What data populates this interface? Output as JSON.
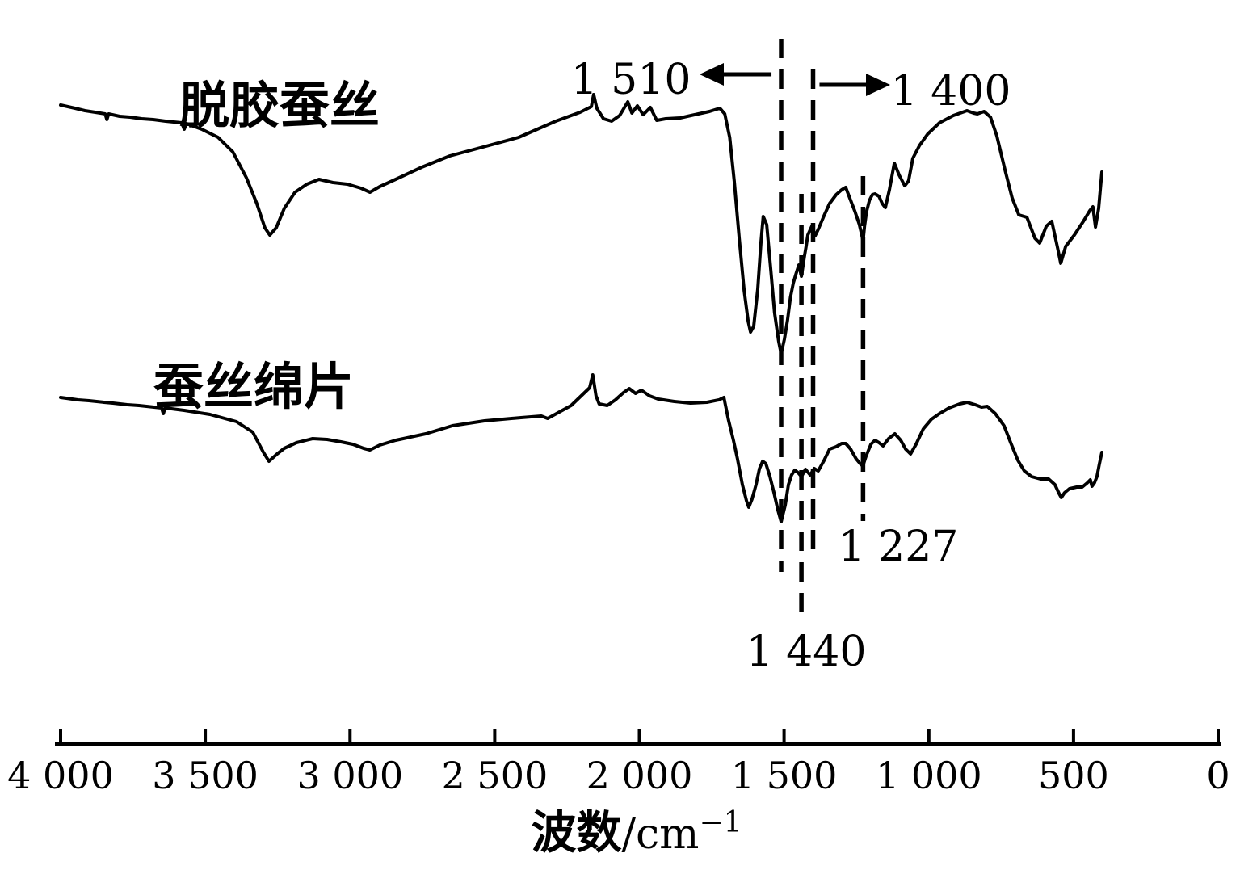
{
  "chart_data": {
    "type": "line",
    "title": "",
    "x_axis": {
      "label_cn": "波数",
      "label_unit": "/cm",
      "label_sup": "−1",
      "min": 0,
      "max": 4000,
      "reversed": true,
      "tick_values": [
        4000,
        3500,
        3000,
        2500,
        2000,
        1500,
        1000,
        500,
        0
      ],
      "tick_labels": [
        "4 000",
        "3 500",
        "3 000",
        "2 500",
        "2 000",
        "1 500",
        "1 000",
        "500",
        "0"
      ]
    },
    "y_axis": {
      "label": "",
      "note": "Transmittance, arbitrary units — no y-axis drawn; point y values are pixel offsets from image top"
    },
    "series": [
      {
        "name": "脱胶蚕丝",
        "points": [
          [
            4000,
            130
          ],
          [
            3950,
            134
          ],
          [
            3916,
            137
          ],
          [
            3880,
            139
          ],
          [
            3846,
            141
          ],
          [
            3840,
            148
          ],
          [
            3834,
            141
          ],
          [
            3796,
            144
          ],
          [
            3760,
            145
          ],
          [
            3720,
            147
          ],
          [
            3680,
            148
          ],
          [
            3637,
            150
          ],
          [
            3581,
            152
          ],
          [
            3573,
            160
          ],
          [
            3565,
            153
          ],
          [
            3512,
            160
          ],
          [
            3456,
            170
          ],
          [
            3405,
            188
          ],
          [
            3358,
            220
          ],
          [
            3322,
            252
          ],
          [
            3294,
            282
          ],
          [
            3277,
            291
          ],
          [
            3255,
            282
          ],
          [
            3227,
            258
          ],
          [
            3190,
            238
          ],
          [
            3149,
            228
          ],
          [
            3107,
            222
          ],
          [
            3059,
            226
          ],
          [
            3009,
            228
          ],
          [
            2962,
            233
          ],
          [
            2931,
            238
          ],
          [
            2897,
            231
          ],
          [
            2836,
            221
          ],
          [
            2752,
            207
          ],
          [
            2655,
            193
          ],
          [
            2540,
            182
          ],
          [
            2417,
            170
          ],
          [
            2289,
            150
          ],
          [
            2205,
            139
          ],
          [
            2166,
            132
          ],
          [
            2158,
            117
          ],
          [
            2147,
            134
          ],
          [
            2124,
            147
          ],
          [
            2096,
            150
          ],
          [
            2068,
            143
          ],
          [
            2040,
            126
          ],
          [
            2026,
            140
          ],
          [
            2007,
            131
          ],
          [
            1987,
            142
          ],
          [
            1962,
            133
          ],
          [
            1940,
            149
          ],
          [
            1909,
            147
          ],
          [
            1859,
            146
          ],
          [
            1809,
            142
          ],
          [
            1758,
            138
          ],
          [
            1722,
            134
          ],
          [
            1705,
            141
          ],
          [
            1688,
            170
          ],
          [
            1672,
            225
          ],
          [
            1655,
            295
          ],
          [
            1638,
            360
          ],
          [
            1624,
            398
          ],
          [
            1616,
            411
          ],
          [
            1605,
            404
          ],
          [
            1591,
            358
          ],
          [
            1580,
            300
          ],
          [
            1572,
            268
          ],
          [
            1560,
            278
          ],
          [
            1547,
            330
          ],
          [
            1533,
            387
          ],
          [
            1519,
            422
          ],
          [
            1510,
            438
          ],
          [
            1499,
            420
          ],
          [
            1488,
            396
          ],
          [
            1478,
            368
          ],
          [
            1468,
            350
          ],
          [
            1458,
            338
          ],
          [
            1449,
            328
          ],
          [
            1440,
            342
          ],
          [
            1430,
            318
          ],
          [
            1424,
            305
          ],
          [
            1418,
            291
          ],
          [
            1404,
            280
          ],
          [
            1393,
            292
          ],
          [
            1382,
            284
          ],
          [
            1362,
            267
          ],
          [
            1343,
            252
          ],
          [
            1320,
            241
          ],
          [
            1301,
            235
          ],
          [
            1287,
            232
          ],
          [
            1270,
            248
          ],
          [
            1255,
            262
          ],
          [
            1240,
            278
          ],
          [
            1232,
            290
          ],
          [
            1227,
            298
          ],
          [
            1222,
            280
          ],
          [
            1215,
            262
          ],
          [
            1205,
            248
          ],
          [
            1195,
            241
          ],
          [
            1186,
            240
          ],
          [
            1172,
            243
          ],
          [
            1161,
            252
          ],
          [
            1150,
            257
          ],
          [
            1136,
            235
          ],
          [
            1119,
            202
          ],
          [
            1102,
            217
          ],
          [
            1083,
            230
          ],
          [
            1070,
            224
          ],
          [
            1055,
            196
          ],
          [
            1032,
            180
          ],
          [
            1004,
            166
          ],
          [
            963,
            152
          ],
          [
            915,
            143
          ],
          [
            868,
            137
          ],
          [
            845,
            140
          ],
          [
            832,
            141
          ],
          [
            809,
            138
          ],
          [
            787,
            145
          ],
          [
            765,
            168
          ],
          [
            737,
            210
          ],
          [
            712,
            245
          ],
          [
            689,
            266
          ],
          [
            661,
            269
          ],
          [
            633,
            295
          ],
          [
            617,
            301
          ],
          [
            594,
            280
          ],
          [
            575,
            274
          ],
          [
            555,
            307
          ],
          [
            544,
            326
          ],
          [
            527,
            305
          ],
          [
            497,
            291
          ],
          [
            466,
            274
          ],
          [
            444,
            261
          ],
          [
            433,
            256
          ],
          [
            424,
            281
          ],
          [
            413,
            258
          ],
          [
            402,
            213
          ]
        ]
      },
      {
        "name": "蚕丝绵片",
        "points": [
          [
            4000,
            492
          ],
          [
            3940,
            495
          ],
          [
            3902,
            496
          ],
          [
            3850,
            498
          ],
          [
            3819,
            499
          ],
          [
            3770,
            501
          ],
          [
            3729,
            502
          ],
          [
            3651,
            505
          ],
          [
            3645,
            512
          ],
          [
            3639,
            505
          ],
          [
            3573,
            508
          ],
          [
            3484,
            513
          ],
          [
            3392,
            522
          ],
          [
            3336,
            535
          ],
          [
            3299,
            560
          ],
          [
            3280,
            571
          ],
          [
            3252,
            562
          ],
          [
            3227,
            555
          ],
          [
            3185,
            548
          ],
          [
            3129,
            543
          ],
          [
            3079,
            544
          ],
          [
            3031,
            547
          ],
          [
            2990,
            550
          ],
          [
            2953,
            555
          ],
          [
            2931,
            557
          ],
          [
            2897,
            551
          ],
          [
            2842,
            545
          ],
          [
            2738,
            537
          ],
          [
            2646,
            527
          ],
          [
            2535,
            521
          ],
          [
            2409,
            517
          ],
          [
            2339,
            515
          ],
          [
            2317,
            518
          ],
          [
            2236,
            502
          ],
          [
            2172,
            480
          ],
          [
            2161,
            464
          ],
          [
            2150,
            490
          ],
          [
            2139,
            500
          ],
          [
            2111,
            502
          ],
          [
            2083,
            495
          ],
          [
            2055,
            486
          ],
          [
            2035,
            481
          ],
          [
            2013,
            487
          ],
          [
            1993,
            483
          ],
          [
            1965,
            490
          ],
          [
            1935,
            494
          ],
          [
            1879,
            497
          ],
          [
            1823,
            499
          ],
          [
            1767,
            498
          ],
          [
            1725,
            495
          ],
          [
            1708,
            492
          ],
          [
            1692,
            520
          ],
          [
            1675,
            545
          ],
          [
            1661,
            568
          ],
          [
            1644,
            600
          ],
          [
            1630,
            620
          ],
          [
            1622,
            628
          ],
          [
            1611,
            618
          ],
          [
            1597,
            600
          ],
          [
            1585,
            580
          ],
          [
            1574,
            571
          ],
          [
            1563,
            574
          ],
          [
            1549,
            590
          ],
          [
            1535,
            610
          ],
          [
            1521,
            632
          ],
          [
            1510,
            646
          ],
          [
            1496,
            625
          ],
          [
            1485,
            600
          ],
          [
            1474,
            588
          ],
          [
            1463,
            582
          ],
          [
            1452,
            585
          ],
          [
            1440,
            590
          ],
          [
            1426,
            581
          ],
          [
            1410,
            588
          ],
          [
            1396,
            580
          ],
          [
            1382,
            583
          ],
          [
            1362,
            570
          ],
          [
            1343,
            556
          ],
          [
            1320,
            553
          ],
          [
            1301,
            549
          ],
          [
            1287,
            549
          ],
          [
            1270,
            556
          ],
          [
            1251,
            568
          ],
          [
            1237,
            574
          ],
          [
            1228,
            577
          ],
          [
            1217,
            565
          ],
          [
            1200,
            550
          ],
          [
            1186,
            545
          ],
          [
            1172,
            548
          ],
          [
            1158,
            552
          ],
          [
            1139,
            543
          ],
          [
            1117,
            537
          ],
          [
            1097,
            545
          ],
          [
            1080,
            556
          ],
          [
            1063,
            562
          ],
          [
            1044,
            550
          ],
          [
            1019,
            531
          ],
          [
            991,
            519
          ],
          [
            963,
            512
          ],
          [
            930,
            505
          ],
          [
            893,
            500
          ],
          [
            868,
            498
          ],
          [
            840,
            501
          ],
          [
            818,
            504
          ],
          [
            798,
            503
          ],
          [
            770,
            512
          ],
          [
            740,
            527
          ],
          [
            715,
            550
          ],
          [
            692,
            570
          ],
          [
            670,
            583
          ],
          [
            645,
            590
          ],
          [
            614,
            593
          ],
          [
            586,
            593
          ],
          [
            564,
            600
          ],
          [
            550,
            611
          ],
          [
            542,
            616
          ],
          [
            531,
            610
          ],
          [
            514,
            605
          ],
          [
            489,
            603
          ],
          [
            470,
            603
          ],
          [
            453,
            598
          ],
          [
            442,
            594
          ],
          [
            436,
            602
          ],
          [
            428,
            598
          ],
          [
            419,
            590
          ],
          [
            411,
            575
          ],
          [
            402,
            560
          ]
        ]
      }
    ],
    "reference_lines": [
      {
        "label": "1 510",
        "wavenumber": 1510
      },
      {
        "label": "1 440",
        "wavenumber": 1440
      },
      {
        "label": "1 400",
        "wavenumber": 1400
      },
      {
        "label": "1 227",
        "wavenumber": 1227
      }
    ]
  },
  "colors": {
    "foreground": "#000000",
    "background": "#ffffff"
  }
}
